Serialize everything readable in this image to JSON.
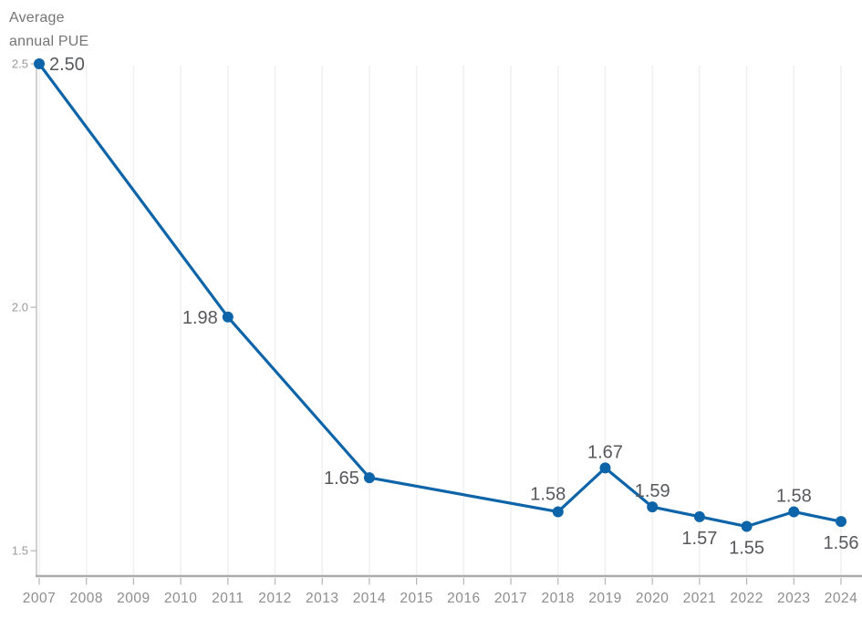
{
  "chart": {
    "title": "Average annual PUE"
  },
  "chart_data": {
    "type": "line",
    "title": "Average annual PUE",
    "xlabel": "",
    "ylabel": "Average annual PUE",
    "legend": "none",
    "grid": "vertical-only",
    "xlim": [
      2007,
      2024
    ],
    "ylim": [
      1.448,
      2.5
    ],
    "x_ticks": [
      "2007",
      "2008",
      "2009",
      "2010",
      "2011",
      "2012",
      "2013",
      "2014",
      "2015",
      "2016",
      "2017",
      "2018",
      "2019",
      "2020",
      "2021",
      "2022",
      "2023",
      "2024"
    ],
    "y_ticks": [
      {
        "value": 2.5,
        "label": "2.5"
      },
      {
        "value": 2.0,
        "label": "2.0"
      },
      {
        "value": 1.5,
        "label": "1.5"
      }
    ],
    "series": [
      {
        "name": "Average annual PUE",
        "x": [
          2007,
          2011,
          2014,
          2018,
          2019,
          2020,
          2021,
          2022,
          2023,
          2024
        ],
        "values": [
          2.5,
          1.98,
          1.65,
          1.58,
          1.67,
          1.59,
          1.57,
          1.55,
          1.58,
          1.56
        ],
        "point_labels": [
          "2.50",
          "1.98",
          "1.65",
          "1.58",
          "1.67",
          "1.59",
          "1.57",
          "1.55",
          "1.58",
          "1.56"
        ],
        "label_placement": [
          "right",
          "left",
          "left",
          "above-left",
          "above",
          "above",
          "below",
          "below",
          "above",
          "below"
        ]
      }
    ],
    "colors": {
      "line": "#0d64a8",
      "point": "#0d64a8",
      "grid": "#f1f1f1",
      "axis_line": "#ababab",
      "tick": "#b5b5b5",
      "x_tick_label": "#8d8d8d",
      "y_tick_label": "#9a9a9a",
      "data_label": "#57585b",
      "title": "#757575"
    }
  }
}
